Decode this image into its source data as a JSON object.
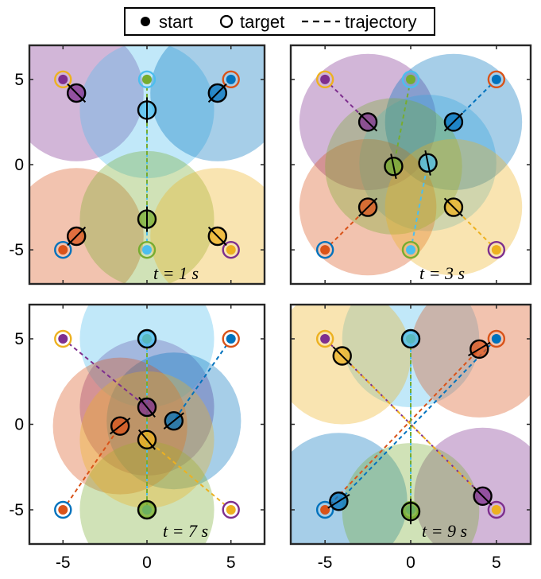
{
  "legend": {
    "start_label": "start",
    "target_label": "target",
    "trajectory_label": "trajectory"
  },
  "colors": {
    "orange": "#d95319",
    "yellow": "#edb120",
    "purple": "#7e2f8e",
    "green": "#77ac30",
    "lightblue": "#4dbeee",
    "blue": "#0072bd"
  },
  "chart_data": [
    {
      "type": "scatter",
      "panel": "top-left",
      "time_label": "t = 1 s",
      "xlim": [
        -7,
        7
      ],
      "ylim": [
        -7,
        7
      ],
      "xticks": [
        -5,
        0,
        5
      ],
      "yticks": [
        -5,
        0,
        5
      ],
      "agents": [
        {
          "color": "purple",
          "start": [
            -5,
            5
          ],
          "target": [
            5,
            -5
          ],
          "position": [
            -4.2,
            4.2
          ]
        },
        {
          "color": "lightblue",
          "start": [
            0,
            -5
          ],
          "target": [
            0,
            5
          ],
          "position": [
            0,
            3.2
          ]
        },
        {
          "color": "blue",
          "start": [
            5,
            5
          ],
          "target": [
            -5,
            -5
          ],
          "position": [
            4.2,
            4.2
          ]
        },
        {
          "color": "orange",
          "start": [
            -5,
            -5
          ],
          "target": [
            5,
            5
          ],
          "position": [
            -4.2,
            -4.2
          ]
        },
        {
          "color": "green",
          "start": [
            0,
            5
          ],
          "target": [
            0,
            -5
          ],
          "position": [
            0,
            -3.2
          ]
        },
        {
          "color": "yellow",
          "start": [
            5,
            -5
          ],
          "target": [
            -5,
            5
          ],
          "position": [
            4.2,
            -4.2
          ]
        }
      ]
    },
    {
      "type": "scatter",
      "panel": "top-right",
      "time_label": "t = 3 s",
      "xlim": [
        -7,
        7
      ],
      "ylim": [
        -7,
        7
      ],
      "xticks": [
        -5,
        0,
        5
      ],
      "yticks": [
        -5,
        0,
        5
      ],
      "agents": [
        {
          "color": "purple",
          "start": [
            -5,
            5
          ],
          "target": [
            5,
            -5
          ],
          "position": [
            -2.5,
            2.5
          ]
        },
        {
          "color": "lightblue",
          "start": [
            0,
            -5
          ],
          "target": [
            0,
            5
          ],
          "position": [
            1,
            0.1
          ]
        },
        {
          "color": "blue",
          "start": [
            5,
            5
          ],
          "target": [
            -5,
            -5
          ],
          "position": [
            2.5,
            2.5
          ]
        },
        {
          "color": "orange",
          "start": [
            -5,
            -5
          ],
          "target": [
            5,
            5
          ],
          "position": [
            -2.5,
            -2.5
          ]
        },
        {
          "color": "green",
          "start": [
            0,
            5
          ],
          "target": [
            0,
            -5
          ],
          "position": [
            -1,
            -0.1
          ]
        },
        {
          "color": "yellow",
          "start": [
            5,
            -5
          ],
          "target": [
            -5,
            5
          ],
          "position": [
            2.5,
            -2.5
          ]
        }
      ]
    },
    {
      "type": "scatter",
      "panel": "bottom-left",
      "time_label": "t = 7 s",
      "xlim": [
        -7,
        7
      ],
      "ylim": [
        -7,
        7
      ],
      "xticks": [
        -5,
        0,
        5
      ],
      "yticks": [
        -5,
        0,
        5
      ],
      "agents": [
        {
          "color": "purple",
          "start": [
            -5,
            5
          ],
          "target": [
            5,
            -5
          ],
          "position": [
            0,
            1
          ]
        },
        {
          "color": "lightblue",
          "start": [
            0,
            -5
          ],
          "target": [
            0,
            5
          ],
          "position": [
            0,
            5
          ]
        },
        {
          "color": "blue",
          "start": [
            5,
            5
          ],
          "target": [
            -5,
            -5
          ],
          "position": [
            1.6,
            0.2
          ]
        },
        {
          "color": "orange",
          "start": [
            -5,
            -5
          ],
          "target": [
            5,
            5
          ],
          "position": [
            -1.6,
            -0.1
          ]
        },
        {
          "color": "green",
          "start": [
            0,
            5
          ],
          "target": [
            0,
            -5
          ],
          "position": [
            0,
            -5
          ]
        },
        {
          "color": "yellow",
          "start": [
            5,
            -5
          ],
          "target": [
            -5,
            5
          ],
          "position": [
            0,
            -0.9
          ]
        }
      ]
    },
    {
      "type": "scatter",
      "panel": "bottom-right",
      "time_label": "t = 9 s",
      "xlim": [
        -7,
        7
      ],
      "ylim": [
        -7,
        7
      ],
      "xticks": [
        -5,
        0,
        5
      ],
      "yticks": [
        -5,
        0,
        5
      ],
      "agents": [
        {
          "color": "purple",
          "start": [
            -5,
            5
          ],
          "target": [
            5,
            -5
          ],
          "position": [
            4.2,
            -4.2
          ]
        },
        {
          "color": "lightblue",
          "start": [
            0,
            -5
          ],
          "target": [
            0,
            5
          ],
          "position": [
            0,
            5
          ]
        },
        {
          "color": "blue",
          "start": [
            5,
            5
          ],
          "target": [
            -5,
            -5
          ],
          "position": [
            -4.2,
            -4.5
          ]
        },
        {
          "color": "orange",
          "start": [
            -5,
            -5
          ],
          "target": [
            5,
            5
          ],
          "position": [
            4,
            4.4
          ]
        },
        {
          "color": "green",
          "start": [
            0,
            5
          ],
          "target": [
            0,
            -5
          ],
          "position": [
            0,
            -5.1
          ]
        },
        {
          "color": "yellow",
          "start": [
            5,
            -5
          ],
          "target": [
            -5,
            5
          ],
          "position": [
            -4,
            4
          ]
        }
      ]
    }
  ]
}
